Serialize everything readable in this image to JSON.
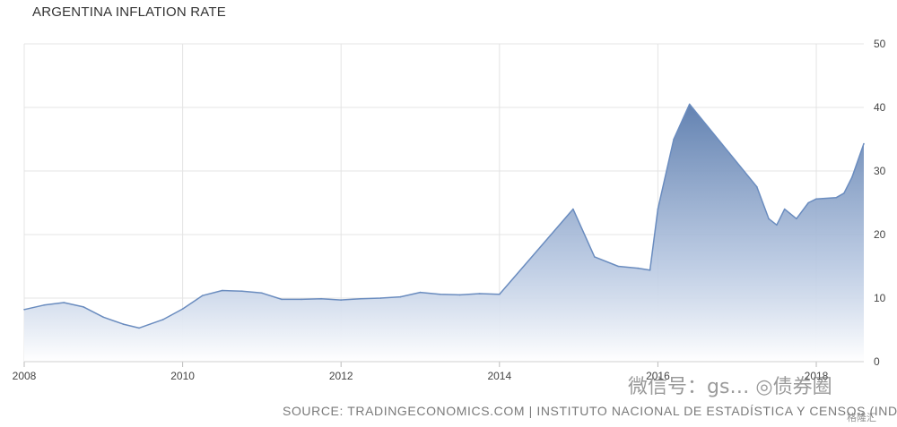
{
  "chart_data": {
    "type": "area",
    "title": "ARGENTINA INFLATION RATE",
    "source": "SOURCE: TRADINGECONOMICS.COM | INSTITUTO NACIONAL DE ESTADÍSTICA Y CENSOS (INDEC)",
    "x": [
      2008.0,
      2008.25,
      2008.5,
      2008.75,
      2009.0,
      2009.25,
      2009.45,
      2009.75,
      2010.0,
      2010.25,
      2010.5,
      2010.75,
      2011.0,
      2011.25,
      2011.5,
      2011.75,
      2012.0,
      2012.25,
      2012.5,
      2012.75,
      2013.0,
      2013.25,
      2013.5,
      2013.75,
      2014.0,
      2014.93,
      2015.2,
      2015.5,
      2015.75,
      2015.9,
      2016.0,
      2016.2,
      2016.4,
      2017.25,
      2017.4,
      2017.5,
      2017.6,
      2017.75,
      2017.9,
      2018.0,
      2018.25,
      2018.35,
      2018.45,
      2018.6
    ],
    "values": [
      8.2,
      8.9,
      9.3,
      8.6,
      7.0,
      5.9,
      5.3,
      6.6,
      8.3,
      10.4,
      11.2,
      11.1,
      10.8,
      9.8,
      9.8,
      9.9,
      9.7,
      9.9,
      10.0,
      10.2,
      10.9,
      10.6,
      10.5,
      10.7,
      10.6,
      24.0,
      16.5,
      15.0,
      14.7,
      14.4,
      24.0,
      35.0,
      40.5,
      27.5,
      22.5,
      21.5,
      24.0,
      22.5,
      25.0,
      25.6,
      25.8,
      26.5,
      29.0,
      34.3
    ],
    "xlim": [
      2008,
      2018.6
    ],
    "ylim": [
      0,
      50
    ],
    "xticks": [
      "2008",
      "2010",
      "2012",
      "2014",
      "2016",
      "2018"
    ],
    "yticks": [
      "0",
      "10",
      "20",
      "30",
      "40",
      "50"
    ],
    "grid": true,
    "colors": {
      "line": "#6a8cbf",
      "fill_top": "#5577aa",
      "fill_bottom": "#ffffff",
      "grid": "#e4e4e4"
    }
  },
  "watermark": "微信号：gs… ◎债券圈",
  "watermark_small": "格隆汇"
}
